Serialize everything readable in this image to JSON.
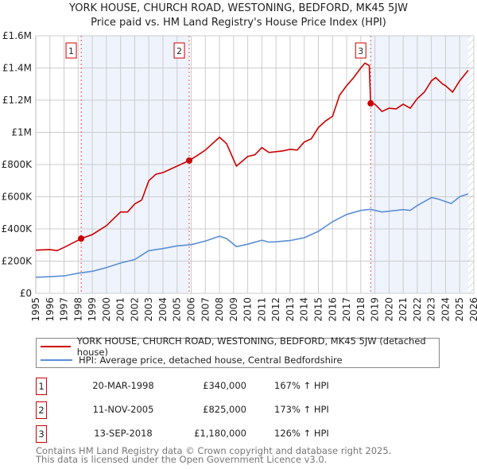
{
  "chart_data": {
    "type": "line",
    "title": "YORK HOUSE, CHURCH ROAD, WESTONING, BEDFORD, MK45 5JW",
    "subtitle": "Price paid vs. HM Land Registry's House Price Index (HPI)",
    "xlim": [
      1995,
      2026
    ],
    "ylim": [
      0,
      1600000
    ],
    "y_ticks": [
      {
        "v": 0,
        "label": "£0"
      },
      {
        "v": 200000,
        "label": "£200K"
      },
      {
        "v": 400000,
        "label": "£400K"
      },
      {
        "v": 600000,
        "label": "£600K"
      },
      {
        "v": 800000,
        "label": "£800K"
      },
      {
        "v": 1000000,
        "label": "£1M"
      },
      {
        "v": 1200000,
        "label": "£1.2M"
      },
      {
        "v": 1400000,
        "label": "£1.4M"
      },
      {
        "v": 1600000,
        "label": "£1.6M"
      }
    ],
    "x_ticks": [
      "1995",
      "1996",
      "1997",
      "1998",
      "1999",
      "2000",
      "2001",
      "2002",
      "2003",
      "2004",
      "2005",
      "2006",
      "2007",
      "2008",
      "2009",
      "2010",
      "2011",
      "2012",
      "2013",
      "2014",
      "2015",
      "2016",
      "2017",
      "2018",
      "2019",
      "2020",
      "2021",
      "2022",
      "2023",
      "2024",
      "2025",
      "2026"
    ],
    "grid": true,
    "shaded_ranges": [
      [
        1998.21,
        2005.86
      ],
      [
        2018.7,
        2025.6
      ]
    ],
    "forecast_hatch_from": 2025.6,
    "series": [
      {
        "name": "YORK HOUSE, CHURCH ROAD, WESTONING, BEDFORD, MK45 5JW (detached house)",
        "color": "#cc0000",
        "x": [
          1995,
          1996,
          1996.5,
          1997,
          1998,
          1998.21,
          1999,
          2000,
          2001,
          2001.5,
          2002,
          2002.5,
          2003,
          2003.5,
          2004,
          2005,
          2005.86,
          2006.5,
          2007,
          2008,
          2008.5,
          2009.2,
          2010,
          2010.5,
          2011,
          2011.5,
          2012,
          2012.5,
          2013,
          2013.5,
          2014,
          2014.5,
          2015,
          2015.5,
          2016,
          2016.5,
          2017,
          2017.5,
          2018,
          2018.3,
          2018.6,
          2018.7,
          2019,
          2019.5,
          2020,
          2020.5,
          2021,
          2021.5,
          2022,
          2022.5,
          2023,
          2023.3,
          2023.8,
          2024,
          2024.5,
          2025,
          2025.6
        ],
        "values": [
          268000,
          272000,
          265000,
          285000,
          330000,
          340000,
          365000,
          420000,
          505000,
          505000,
          555000,
          580000,
          700000,
          740000,
          750000,
          790000,
          825000,
          860000,
          890000,
          970000,
          930000,
          790000,
          850000,
          860000,
          905000,
          875000,
          880000,
          885000,
          895000,
          890000,
          940000,
          960000,
          1030000,
          1070000,
          1100000,
          1230000,
          1290000,
          1340000,
          1400000,
          1430000,
          1415000,
          1180000,
          1175000,
          1130000,
          1150000,
          1145000,
          1175000,
          1150000,
          1210000,
          1250000,
          1320000,
          1340000,
          1300000,
          1290000,
          1250000,
          1320000,
          1385000
        ]
      },
      {
        "name": "HPI: Average price, detached house, Central Bedfordshire",
        "color": "#5b8fd6",
        "x": [
          1995,
          1996,
          1997,
          1998,
          1999,
          2000,
          2001,
          2002,
          2003,
          2004,
          2005,
          2006,
          2007,
          2008,
          2008.5,
          2009.2,
          2010,
          2011,
          2011.5,
          2012,
          2013,
          2014,
          2015,
          2016,
          2017,
          2018,
          2018.7,
          2019.5,
          2020,
          2021,
          2021.5,
          2022,
          2023,
          2023.5,
          2024,
          2024.4,
          2025,
          2025.6
        ],
        "values": [
          100000,
          103000,
          108000,
          125000,
          137000,
          160000,
          188000,
          210000,
          265000,
          278000,
          295000,
          302000,
          325000,
          355000,
          340000,
          290000,
          305000,
          330000,
          318000,
          320000,
          328000,
          345000,
          385000,
          445000,
          490000,
          515000,
          522000,
          505000,
          510000,
          520000,
          515000,
          545000,
          595000,
          585000,
          570000,
          558000,
          600000,
          618000
        ]
      }
    ],
    "sales": [
      {
        "id": "1",
        "x": 1998.21,
        "value": 340000,
        "date": "20-MAR-1998",
        "price": "£340,000",
        "hpi": "167% ↑ HPI"
      },
      {
        "id": "2",
        "x": 2005.86,
        "value": 825000,
        "date": "11-NOV-2005",
        "price": "£825,000",
        "hpi": "173% ↑ HPI"
      },
      {
        "id": "3",
        "x": 2018.7,
        "value": 1180000,
        "date": "13-SEP-2018",
        "price": "£1,180,000",
        "hpi": "126% ↑ HPI"
      }
    ]
  },
  "footer": {
    "line1": "Contains HM Land Registry data © Crown copyright and database right 2025.",
    "line2": "This data is licensed under the Open Government Licence v3.0."
  }
}
